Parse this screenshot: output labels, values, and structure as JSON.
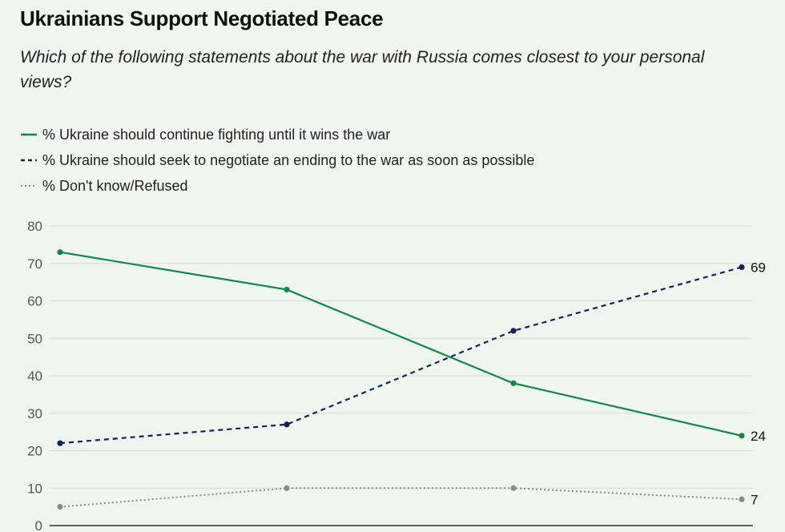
{
  "chart_data": {
    "type": "line",
    "title": "Ukrainians Support Negotiated Peace",
    "subtitle": "Which of the following statements about the war with Russia comes closest to your personal views?",
    "x": [
      0,
      1,
      2,
      3
    ],
    "ylim": [
      0,
      80
    ],
    "yticks": [
      0,
      10,
      20,
      30,
      40,
      50,
      60,
      70,
      80
    ],
    "grid": true,
    "legend_position": "top-left",
    "series": [
      {
        "name": "% Ukraine should continue fighting until it wins the war",
        "values": [
          73,
          63,
          38,
          24
        ],
        "color": "#13874b",
        "style": "solid",
        "end_label": "24"
      },
      {
        "name": "% Ukraine should seek to negotiate an ending to the war as soon as possible",
        "values": [
          22,
          27,
          52,
          69
        ],
        "color": "#14225a",
        "style": "dashed",
        "end_label": "69"
      },
      {
        "name": "% Don't know/Refused",
        "values": [
          5,
          10,
          10,
          7
        ],
        "color": "#8a8a8a",
        "style": "dotted",
        "end_label": "7"
      }
    ]
  }
}
